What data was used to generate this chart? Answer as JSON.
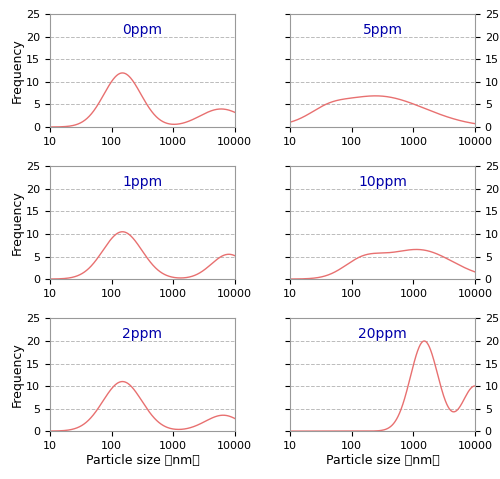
{
  "panels": [
    {
      "label": "0ppm"
    },
    {
      "label": "5ppm"
    },
    {
      "label": "1ppm"
    },
    {
      "label": "10ppm"
    },
    {
      "label": "2ppm"
    },
    {
      "label": "20ppm"
    }
  ],
  "line_color": "#e87070",
  "label_color": "#0000aa",
  "grid_color": "#aaaaaa",
  "background_color": "#ffffff",
  "ylim": [
    0,
    25
  ],
  "yticks": [
    0,
    5,
    10,
    15,
    20,
    25
  ],
  "xlabel": "Particle size （nm）",
  "ylabel": "Frequency",
  "label_fontsize": 10,
  "axis_fontsize": 9,
  "tick_fontsize": 8
}
